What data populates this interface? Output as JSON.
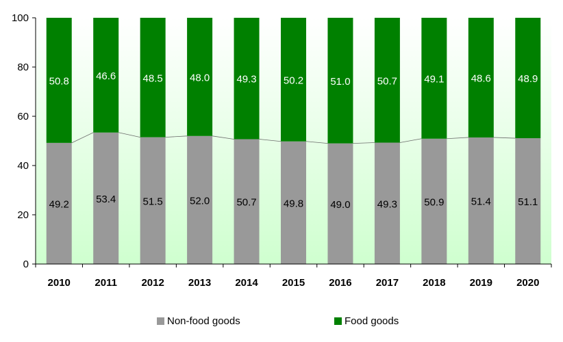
{
  "chart_data": {
    "type": "bar",
    "stacked": true,
    "categories": [
      "2010",
      "2011",
      "2012",
      "2013",
      "2014",
      "2015",
      "2016",
      "2017",
      "2018",
      "2019",
      "2020"
    ],
    "series": [
      {
        "name": "Non-food goods",
        "color": "#999999",
        "values": [
          49.2,
          53.4,
          51.5,
          52.0,
          50.7,
          49.8,
          49.0,
          49.3,
          50.9,
          51.4,
          51.1
        ]
      },
      {
        "name": "Food goods",
        "color": "#008000",
        "values": [
          50.8,
          46.6,
          48.5,
          48.0,
          49.3,
          50.2,
          51.0,
          50.7,
          49.1,
          48.6,
          48.9
        ]
      }
    ],
    "value_labels": {
      "Non-food goods": [
        "49.2",
        "53.4",
        "51.5",
        "52.0",
        "50.7",
        "49.8",
        "49.0",
        "49.3",
        "50.9",
        "51.4",
        "51.1"
      ],
      "Food goods": [
        "50.8",
        "46.6",
        "48.5",
        "48.0",
        "49.3",
        "50.2",
        "51.0",
        "50.7",
        "49.1",
        "48.6",
        "48.9"
      ]
    },
    "ylim": [
      0,
      100
    ],
    "yticks": [
      "0",
      "20",
      "40",
      "60",
      "80",
      "100"
    ],
    "grid": false,
    "legend_position": "bottom",
    "background_gradient": [
      "#ffffff",
      "#cfffcf"
    ]
  }
}
